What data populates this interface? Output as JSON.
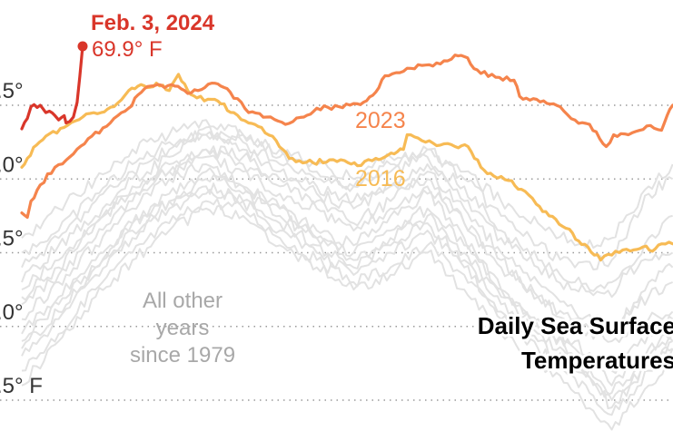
{
  "chart_data": {
    "type": "line",
    "title": "Daily Sea Surface Temperatures",
    "xlabel": "",
    "ylabel": "",
    "x_unit": "day of year",
    "xlim": [
      1,
      354
    ],
    "ylim": [
      67.2,
      70.3
    ],
    "grid": true,
    "y_ticks": [
      {
        "value": 69.5,
        "label": ".5°"
      },
      {
        "value": 69.0,
        "label": ".0°"
      },
      {
        "value": 68.5,
        "label": ".5°"
      },
      {
        "value": 68.0,
        "label": ".0°"
      },
      {
        "value": 67.5,
        "label": ".5° F"
      }
    ],
    "annotations": {
      "latest_date": "Feb. 3, 2024",
      "latest_value": "69.9° F",
      "other_years_lines": [
        "All other",
        "years",
        "since 1979"
      ],
      "title_lines": [
        "Daily Sea Surface",
        "Temperatures"
      ]
    },
    "colors": {
      "y2024": "#d9362a",
      "y2023": "#f5844c",
      "y2016": "#f7bb55",
      "other": "#e2e2e2"
    },
    "series": [
      {
        "name": "2024",
        "label": "",
        "color_key": "y2024",
        "x": [
          1,
          4,
          6,
          11,
          14,
          16,
          19,
          21,
          24,
          25,
          29,
          31,
          34
        ],
        "y": [
          69.34,
          69.41,
          69.49,
          69.5,
          69.45,
          69.46,
          69.43,
          69.4,
          69.43,
          69.38,
          69.42,
          69.52,
          69.9
        ]
      },
      {
        "name": "2023",
        "label": "2023",
        "color_key": "y2023",
        "x": [
          1,
          4,
          6,
          11,
          19,
          29,
          39,
          49,
          59,
          64,
          71,
          84,
          91,
          104,
          109,
          114,
          124,
          134,
          144,
          154,
          161,
          173,
          183,
          188,
          193,
          198,
          208,
          218,
          228,
          236,
          241,
          248,
          258,
          268,
          271,
          284,
          293,
          301,
          309,
          318,
          322,
          330,
          340,
          348,
          351,
          354
        ],
        "y": [
          68.77,
          68.74,
          68.85,
          68.96,
          69.08,
          69.17,
          69.29,
          69.38,
          69.48,
          69.57,
          69.63,
          69.63,
          69.58,
          69.65,
          69.63,
          69.59,
          69.45,
          69.42,
          69.37,
          69.42,
          69.48,
          69.49,
          69.51,
          69.53,
          69.59,
          69.7,
          69.73,
          69.77,
          69.78,
          69.84,
          69.83,
          69.74,
          69.69,
          69.67,
          69.56,
          69.53,
          69.49,
          69.4,
          69.37,
          69.22,
          69.3,
          69.3,
          69.36,
          69.33,
          69.43,
          69.5
        ]
      },
      {
        "name": "2016",
        "label": "2016",
        "color_key": "y2016",
        "x": [
          1,
          4,
          9,
          14,
          24,
          34,
          44,
          51,
          59,
          64,
          69,
          74,
          81,
          86,
          91,
          96,
          104,
          109,
          116,
          124,
          131,
          139,
          146,
          159,
          168,
          178,
          183,
          193,
          198,
          203,
          208,
          210,
          218,
          228,
          236,
          243,
          250,
          257,
          265,
          272,
          280,
          287,
          298,
          303,
          308,
          315,
          323,
          333,
          338,
          343,
          348,
          354
        ],
        "y": [
          69.08,
          69.14,
          69.23,
          69.29,
          69.35,
          69.42,
          69.45,
          69.49,
          69.6,
          69.63,
          69.62,
          69.65,
          69.6,
          69.71,
          69.6,
          69.55,
          69.54,
          69.51,
          69.45,
          69.38,
          69.35,
          69.26,
          69.14,
          69.11,
          69.13,
          69.11,
          69.09,
          69.14,
          69.15,
          69.17,
          69.2,
          69.3,
          69.26,
          69.23,
          69.22,
          69.22,
          69.08,
          69.02,
          68.99,
          68.93,
          68.83,
          68.75,
          68.66,
          68.58,
          68.54,
          68.45,
          68.51,
          68.52,
          68.54,
          68.51,
          68.56,
          68.56
        ]
      },
      {
        "name": "other-01",
        "color_key": "other",
        "x": [
          1,
          21,
          41,
          61,
          81,
          101,
          121,
          141,
          161,
          181,
          201,
          221,
          241,
          261,
          281,
          301,
          321,
          341,
          354
        ],
        "y": [
          68.25,
          68.45,
          68.7,
          68.9,
          69.05,
          69.2,
          69.15,
          69.0,
          68.9,
          68.8,
          68.95,
          69.0,
          68.7,
          68.4,
          68.2,
          68.0,
          67.9,
          68.05,
          68.1
        ]
      },
      {
        "name": "other-02",
        "color_key": "other",
        "x": [
          1,
          21,
          41,
          61,
          81,
          101,
          121,
          141,
          161,
          181,
          201,
          221,
          241,
          261,
          281,
          301,
          321,
          341,
          354
        ],
        "y": [
          68.05,
          68.3,
          68.55,
          68.8,
          69.0,
          69.1,
          68.95,
          68.8,
          68.65,
          68.55,
          68.75,
          68.9,
          68.6,
          68.25,
          68.0,
          67.85,
          67.7,
          67.95,
          68.05
        ]
      },
      {
        "name": "other-03",
        "color_key": "other",
        "x": [
          1,
          21,
          41,
          61,
          81,
          101,
          121,
          141,
          161,
          181,
          201,
          221,
          241,
          261,
          281,
          301,
          321,
          341,
          354
        ],
        "y": [
          68.4,
          68.6,
          68.85,
          69.05,
          69.2,
          69.3,
          69.25,
          69.1,
          69.0,
          68.95,
          69.05,
          69.15,
          68.85,
          68.6,
          68.4,
          68.25,
          68.3,
          68.45,
          68.5
        ]
      },
      {
        "name": "other-04",
        "color_key": "other",
        "x": [
          1,
          21,
          41,
          61,
          81,
          101,
          121,
          141,
          161,
          181,
          201,
          221,
          241,
          261,
          281,
          301,
          321,
          341,
          354
        ],
        "y": [
          67.85,
          68.1,
          68.4,
          68.65,
          68.85,
          68.95,
          68.85,
          68.7,
          68.55,
          68.4,
          68.55,
          68.7,
          68.45,
          68.15,
          67.95,
          67.75,
          67.55,
          67.8,
          67.9
        ]
      },
      {
        "name": "other-05",
        "color_key": "other",
        "x": [
          1,
          21,
          41,
          61,
          81,
          101,
          121,
          141,
          161,
          181,
          201,
          221,
          241,
          261,
          281,
          301,
          321,
          341,
          354
        ],
        "y": [
          68.15,
          68.35,
          68.6,
          68.85,
          69.1,
          69.2,
          69.1,
          68.95,
          68.85,
          68.7,
          68.85,
          69.05,
          68.8,
          68.5,
          68.3,
          68.1,
          68.0,
          68.2,
          68.3
        ]
      },
      {
        "name": "other-06",
        "color_key": "other",
        "x": [
          1,
          21,
          41,
          61,
          81,
          101,
          121,
          141,
          161,
          181,
          201,
          221,
          241,
          261,
          281,
          301,
          321,
          341,
          354
        ],
        "y": [
          67.7,
          67.95,
          68.25,
          68.5,
          68.7,
          68.85,
          68.8,
          68.6,
          68.45,
          68.3,
          68.4,
          68.55,
          68.35,
          68.05,
          67.85,
          67.65,
          67.4,
          67.7,
          67.85
        ]
      },
      {
        "name": "other-07",
        "color_key": "other",
        "x": [
          1,
          21,
          41,
          61,
          81,
          101,
          121,
          141,
          161,
          181,
          201,
          221,
          241,
          261,
          281,
          301,
          321,
          341,
          354
        ],
        "y": [
          68.3,
          68.55,
          68.75,
          69.0,
          69.15,
          69.35,
          69.2,
          69.05,
          68.95,
          68.85,
          68.95,
          69.1,
          68.95,
          68.65,
          68.45,
          68.3,
          68.2,
          68.6,
          68.75
        ]
      },
      {
        "name": "other-08",
        "color_key": "other",
        "x": [
          1,
          21,
          41,
          61,
          81,
          101,
          121,
          141,
          161,
          181,
          201,
          221,
          241,
          261,
          281,
          301,
          321,
          341,
          354
        ],
        "y": [
          67.95,
          68.2,
          68.45,
          68.7,
          68.9,
          69.05,
          68.9,
          68.75,
          68.6,
          68.5,
          68.65,
          68.8,
          68.55,
          68.25,
          68.05,
          67.9,
          67.6,
          67.85,
          67.95
        ]
      },
      {
        "name": "other-09",
        "color_key": "other",
        "x": [
          1,
          21,
          41,
          61,
          81,
          101,
          121,
          141,
          161,
          181,
          201,
          221,
          241,
          261,
          281,
          301,
          321,
          341,
          354
        ],
        "y": [
          68.5,
          68.65,
          68.9,
          69.1,
          69.25,
          69.3,
          69.3,
          69.15,
          69.05,
          68.95,
          69.1,
          69.2,
          69.0,
          68.75,
          68.55,
          68.4,
          68.45,
          68.9,
          69.0
        ]
      },
      {
        "name": "other-10",
        "color_key": "other",
        "x": [
          1,
          21,
          41,
          61,
          81,
          101,
          121,
          141,
          161,
          181,
          201,
          221,
          241,
          261,
          281,
          301,
          321,
          341,
          354
        ],
        "y": [
          67.6,
          67.9,
          68.2,
          68.45,
          68.65,
          68.8,
          68.75,
          68.55,
          68.4,
          68.25,
          68.35,
          68.5,
          68.25,
          67.95,
          67.75,
          67.55,
          67.3,
          67.6,
          67.75
        ]
      },
      {
        "name": "other-11",
        "color_key": "other",
        "x": [
          1,
          21,
          41,
          61,
          81,
          101,
          121,
          141,
          161,
          181,
          201,
          221,
          241,
          261,
          281,
          301,
          321,
          341,
          354
        ],
        "y": [
          68.2,
          68.4,
          68.7,
          68.95,
          69.05,
          69.15,
          69.05,
          68.9,
          68.8,
          68.65,
          68.8,
          68.95,
          68.7,
          68.45,
          68.2,
          68.05,
          67.95,
          68.3,
          68.4
        ]
      },
      {
        "name": "other-12",
        "color_key": "other",
        "x": [
          1,
          21,
          41,
          61,
          81,
          101,
          121,
          141,
          161,
          181,
          201,
          221,
          241,
          261,
          281,
          301,
          321,
          341,
          354
        ],
        "y": [
          67.8,
          68.05,
          68.35,
          68.6,
          68.8,
          68.9,
          68.85,
          68.65,
          68.5,
          68.35,
          68.5,
          68.65,
          68.4,
          68.1,
          67.9,
          67.7,
          67.5,
          67.75,
          67.85
        ]
      },
      {
        "name": "other-13",
        "color_key": "other",
        "x": [
          1,
          21,
          41,
          61,
          81,
          101,
          121,
          141,
          161,
          181,
          201,
          221,
          241,
          261,
          281,
          301,
          321,
          341,
          354
        ],
        "y": [
          68.6,
          68.8,
          69.0,
          69.2,
          69.3,
          69.4,
          69.3,
          69.2,
          69.1,
          69.0,
          69.15,
          69.2,
          69.05,
          68.85,
          68.7,
          68.55,
          68.6,
          68.95,
          69.1
        ]
      },
      {
        "name": "other-14",
        "color_key": "other",
        "x": [
          1,
          21,
          41,
          61,
          81,
          101,
          121,
          141,
          161,
          181,
          201,
          221,
          241,
          261,
          281,
          301,
          321,
          341,
          354
        ],
        "y": [
          67.9,
          68.15,
          68.4,
          68.7,
          68.85,
          69.0,
          68.95,
          68.8,
          68.6,
          68.45,
          68.6,
          68.75,
          68.5,
          68.2,
          68.0,
          67.8,
          67.45,
          67.75,
          67.9
        ]
      }
    ]
  }
}
